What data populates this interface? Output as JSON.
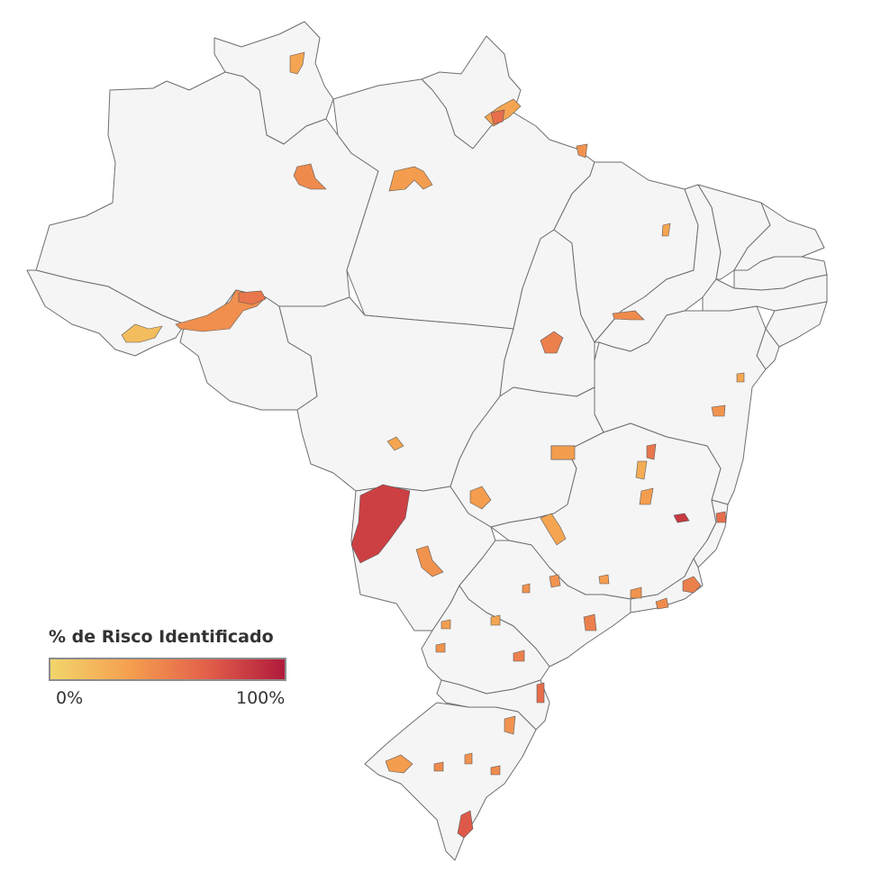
{
  "legend": {
    "title": "% de Risco Identificado",
    "min_label": "0%",
    "max_label": "100%",
    "scale_colors": [
      "#f2d56b",
      "#f5a04f",
      "#e3604a",
      "#b01a3c"
    ]
  },
  "map": {
    "base_fill": "#f5f5f5",
    "border_color": "#6e6e6e",
    "municipalities": [
      {
        "risk": 0.3
      },
      {
        "risk": 0.45
      },
      {
        "risk": 0.35
      },
      {
        "risk": 0.3
      },
      {
        "risk": 0.6
      },
      {
        "risk": 0.42
      },
      {
        "risk": 0.55
      },
      {
        "risk": 0.15
      },
      {
        "risk": 0.5
      },
      {
        "risk": 0.4
      },
      {
        "risk": 0.45
      },
      {
        "risk": 0.3
      },
      {
        "risk": 0.82
      },
      {
        "risk": 0.4
      },
      {
        "risk": 0.35
      },
      {
        "risk": 0.35
      },
      {
        "risk": 0.3
      },
      {
        "risk": 0.55
      },
      {
        "risk": 0.25
      },
      {
        "risk": 0.35
      },
      {
        "risk": 0.4
      },
      {
        "risk": 0.3
      },
      {
        "risk": 0.6
      },
      {
        "risk": 0.3
      },
      {
        "risk": 0.85
      },
      {
        "risk": 0.5
      },
      {
        "risk": 0.4
      },
      {
        "risk": 0.4
      },
      {
        "risk": 0.5
      },
      {
        "risk": 0.35
      },
      {
        "risk": 0.4
      },
      {
        "risk": 0.45
      },
      {
        "risk": 0.35
      },
      {
        "risk": 0.3
      },
      {
        "risk": 0.5
      },
      {
        "risk": 0.4
      },
      {
        "risk": 0.6
      },
      {
        "risk": 0.4
      },
      {
        "risk": 0.35
      },
      {
        "risk": 0.45
      },
      {
        "risk": 0.7
      },
      {
        "risk": 0.4
      },
      {
        "risk": 0.45
      }
    ]
  }
}
